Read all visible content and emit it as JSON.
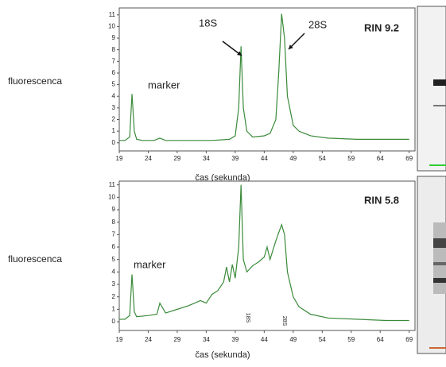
{
  "chart_data": [
    {
      "type": "line",
      "title": "RIN 9.2",
      "x_label": "čas (sekunda)",
      "y_label": "fluorescenca",
      "annotations": [
        "marker",
        "18S",
        "28S"
      ],
      "xlim": [
        19,
        70
      ],
      "xticks": [
        19,
        24,
        29,
        34,
        39,
        44,
        49,
        54,
        59,
        64,
        69
      ],
      "ylim": [
        -0.7,
        11.6
      ],
      "yticks": [
        0,
        1,
        2,
        3,
        4,
        5,
        6,
        7,
        8,
        9,
        10,
        11
      ],
      "series": [
        {
          "color": "#3a8a3a",
          "x": [
            19,
            20,
            20.8,
            21.2,
            21.6,
            22,
            23,
            25,
            26,
            27,
            30,
            35,
            38,
            39,
            39.6,
            40,
            40.4,
            41,
            42,
            44,
            45,
            46,
            46.5,
            47,
            47.5,
            48,
            49,
            50,
            52,
            55,
            60,
            65,
            69
          ],
          "values": [
            0.2,
            0.2,
            0.5,
            4.2,
            1.0,
            0.3,
            0.2,
            0.2,
            0.4,
            0.2,
            0.2,
            0.2,
            0.3,
            0.6,
            3,
            8.3,
            3,
            1,
            0.5,
            0.6,
            0.8,
            2,
            6,
            11.1,
            9,
            4,
            1.5,
            1.0,
            0.6,
            0.4,
            0.3,
            0.3,
            0.3
          ]
        }
      ]
    },
    {
      "type": "line",
      "title": "RIN 5.8",
      "x_label": "čas (sekunda)",
      "y_label": "fluorescenca",
      "annotations": [
        "marker",
        "18S",
        "28S"
      ],
      "xlim": [
        19,
        70
      ],
      "xticks": [
        19,
        24,
        29,
        34,
        39,
        44,
        49,
        54,
        59,
        64,
        69
      ],
      "ylim": [
        -0.7,
        11.3
      ],
      "yticks": [
        0,
        1,
        2,
        3,
        4,
        5,
        6,
        7,
        8,
        9,
        10,
        11
      ],
      "series": [
        {
          "color": "#3a8a3a",
          "x": [
            19,
            20,
            20.8,
            21.2,
            21.6,
            22,
            24,
            25.5,
            26,
            27,
            29,
            31,
            33,
            34,
            35,
            36,
            37,
            37.5,
            38,
            38.5,
            39,
            39.6,
            40,
            40.4,
            41,
            42,
            43,
            44,
            44.5,
            45,
            46,
            47,
            47.5,
            48,
            49,
            50,
            52,
            55,
            60,
            65,
            69
          ],
          "values": [
            0.2,
            0.2,
            0.5,
            3.8,
            0.8,
            0.4,
            0.5,
            0.6,
            1.5,
            0.7,
            1.0,
            1.3,
            1.7,
            1.5,
            2.2,
            2.5,
            3.2,
            4.4,
            3.2,
            4.6,
            3.5,
            6,
            11,
            5,
            4,
            4.5,
            4.8,
            5.2,
            6,
            5,
            6.5,
            7.8,
            7,
            4,
            2,
            1.2,
            0.6,
            0.3,
            0.2,
            0.1,
            0.1
          ]
        }
      ]
    }
  ]
}
